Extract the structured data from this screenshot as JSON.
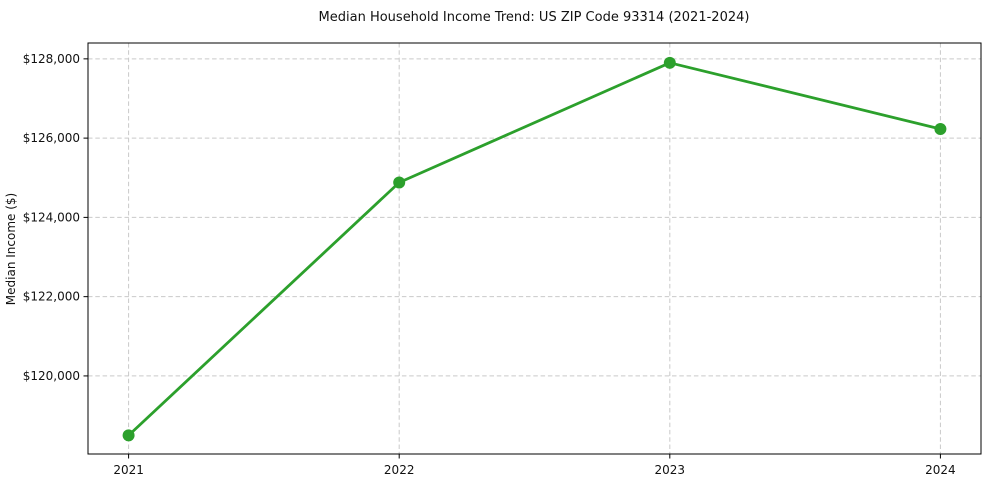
{
  "window": {
    "background": "#ffffff"
  },
  "chart_data": {
    "type": "line",
    "title": "Median Household Income Trend: US ZIP Code 93314 (2021-2024)",
    "xlabel": "",
    "ylabel": "Median Income ($)",
    "categories": [
      "2021",
      "2022",
      "2023",
      "2024"
    ],
    "x": [
      2021,
      2022,
      2023,
      2024
    ],
    "values": [
      118500,
      124880,
      127900,
      126230
    ],
    "y_ticks": [
      120000,
      122000,
      124000,
      126000,
      128000
    ],
    "y_tick_labels": [
      "$120,000",
      "$122,000",
      "$124,000",
      "$126,000",
      "$128,000"
    ],
    "xlim": [
      2020.85,
      2024.15
    ],
    "ylim": [
      118030,
      128400
    ],
    "grid": {
      "visible": true,
      "style": "dashed",
      "color": "#c9c9c9"
    },
    "legend_position": "none",
    "line_color": "#2ca02c",
    "marker": "circle",
    "marker_size": 6,
    "line_width": 2.8,
    "axes_color": "#000000",
    "text_color": "#111111",
    "background": "#ffffff"
  }
}
